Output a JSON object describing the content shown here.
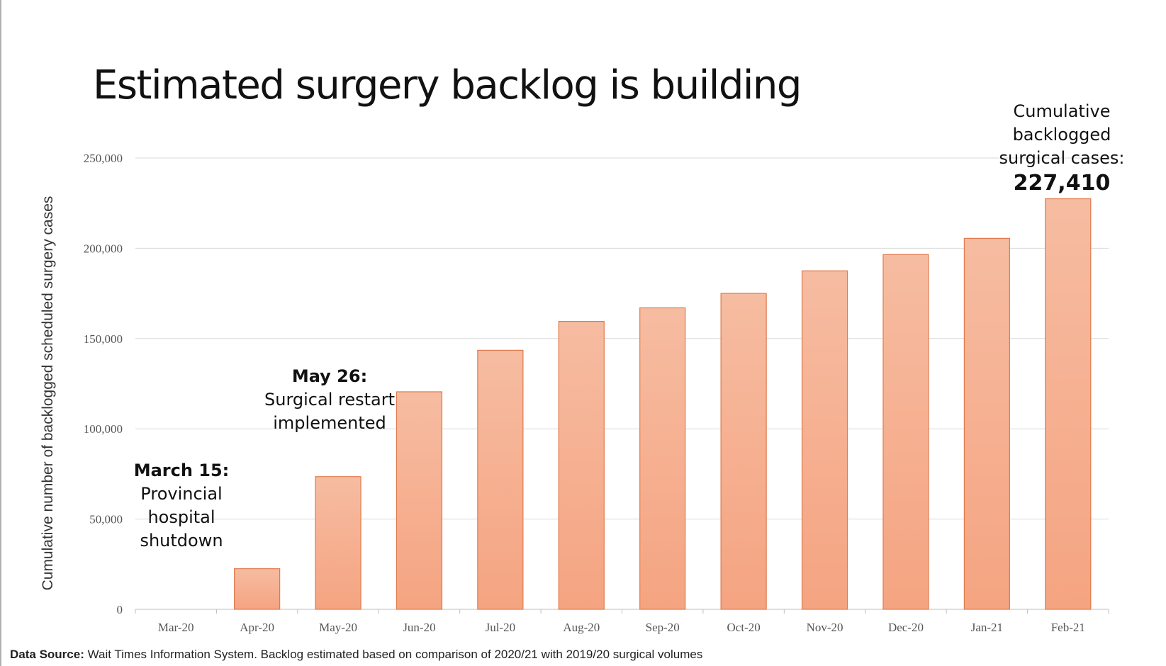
{
  "title": "Estimated surgery backlog is building",
  "chart_data": {
    "type": "bar",
    "categories": [
      "Mar-20",
      "Apr-20",
      "May-20",
      "Jun-20",
      "Jul-20",
      "Aug-20",
      "Sep-20",
      "Oct-20",
      "Nov-20",
      "Dec-20",
      "Jan-21",
      "Feb-21"
    ],
    "values": [
      0,
      22500,
      73500,
      120500,
      143500,
      159500,
      167000,
      175000,
      187500,
      196500,
      205500,
      227410
    ],
    "ylabel": "Cumulative number of backlogged scheduled surgery cases",
    "ylim": [
      0,
      250000
    ],
    "yticks": [
      "0",
      "50,000",
      "100,000",
      "150,000",
      "200,000",
      "250,000"
    ],
    "ytick_values": [
      0,
      50000,
      100000,
      150000,
      200000,
      250000
    ],
    "grid": true,
    "bar_color": "#f5a481",
    "bar_edge": "#e07a4d"
  },
  "annotations": {
    "march": {
      "heading": "March 15:",
      "line1": "Provincial",
      "line2": "hospital",
      "line3": "shutdown"
    },
    "may": {
      "heading": "May 26:",
      "line1": "Surgical restart",
      "line2": "implemented"
    },
    "total": {
      "line1": "Cumulative",
      "line2": "backlogged",
      "line3": "surgical cases:",
      "value": "227,410"
    }
  },
  "source": {
    "label": "Data Source:",
    "text": " Wait Times Information System. Backlog estimated based on comparison of 2020/21 with 2019/20 surgical volumes"
  }
}
